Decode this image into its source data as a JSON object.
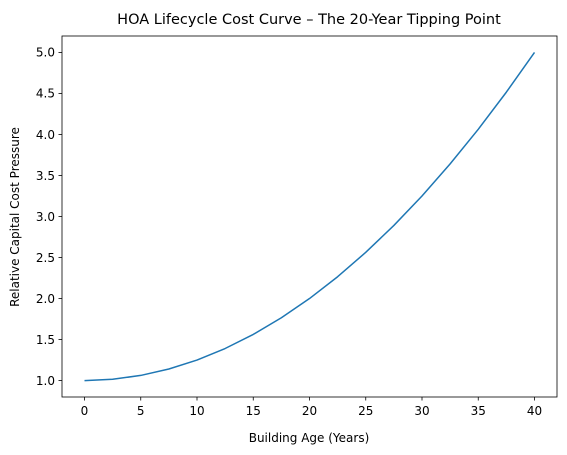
{
  "chart_data": {
    "type": "line",
    "title": "HOA Lifecycle Cost Curve – The 20-Year Tipping Point",
    "xlabel": "Building Age (Years)",
    "ylabel": "Relative Capital Cost Pressure",
    "xlim": [
      -2,
      42
    ],
    "ylim": [
      0.8,
      5.2
    ],
    "xticks": [
      0,
      5,
      10,
      15,
      20,
      25,
      30,
      35,
      40
    ],
    "xtick_labels": [
      "0",
      "5",
      "10",
      "15",
      "20",
      "25",
      "30",
      "35",
      "40"
    ],
    "yticks": [
      1.0,
      1.5,
      2.0,
      2.5,
      3.0,
      3.5,
      4.0,
      4.5,
      5.0
    ],
    "ytick_labels": [
      "1.0",
      "1.5",
      "2.0",
      "2.5",
      "3.0",
      "3.5",
      "4.0",
      "4.5",
      "5.0"
    ],
    "grid": false,
    "legend": "none",
    "color": "#1f77b4",
    "series": [
      {
        "x": [
          0,
          2.5,
          5,
          7.5,
          10,
          12.5,
          15,
          17.5,
          20,
          22.5,
          25,
          27.5,
          30,
          32.5,
          35,
          37.5,
          40
        ],
        "values": [
          1.0,
          1.016,
          1.063,
          1.141,
          1.25,
          1.391,
          1.563,
          1.766,
          2.0,
          2.266,
          2.563,
          2.891,
          3.25,
          3.641,
          4.063,
          4.516,
          5.0
        ]
      }
    ]
  }
}
